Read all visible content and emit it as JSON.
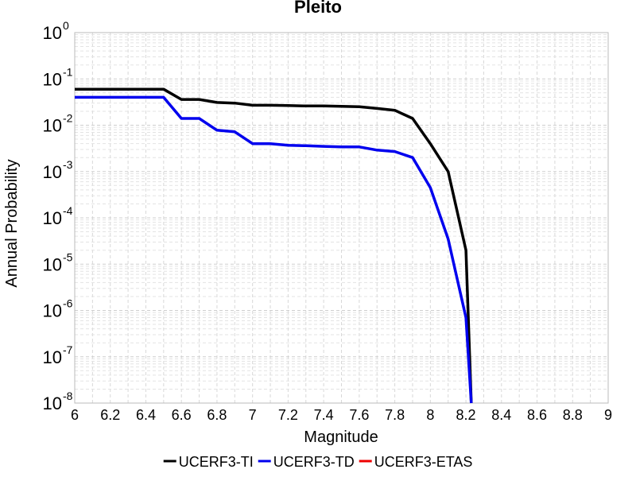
{
  "chart_data": {
    "type": "line",
    "title": "Pleito",
    "xlabel": "Magnitude",
    "ylabel": "Annual Probability",
    "xlim": [
      6,
      9
    ],
    "ylim": [
      1e-08,
      1
    ],
    "yscale": "log",
    "grid": true,
    "legend_position": "bottom",
    "xticks": [
      "6",
      "6.2",
      "6.4",
      "6.6",
      "6.8",
      "7",
      "7.2",
      "7.4",
      "7.6",
      "7.8",
      "8",
      "8.2",
      "8.4",
      "8.6",
      "8.8",
      "9"
    ],
    "yticks": [
      {
        "base": "10",
        "exp": "0"
      },
      {
        "base": "10",
        "exp": "-1"
      },
      {
        "base": "10",
        "exp": "-2"
      },
      {
        "base": "10",
        "exp": "-3"
      },
      {
        "base": "10",
        "exp": "-4"
      },
      {
        "base": "10",
        "exp": "-5"
      },
      {
        "base": "10",
        "exp": "-6"
      },
      {
        "base": "10",
        "exp": "-7"
      },
      {
        "base": "10",
        "exp": "-8"
      }
    ],
    "series": [
      {
        "name": "UCERF3-TI",
        "color": "#000000",
        "x": [
          6.0,
          6.5,
          6.6,
          6.7,
          6.8,
          6.9,
          7.0,
          7.1,
          7.2,
          7.3,
          7.4,
          7.5,
          7.6,
          7.7,
          7.8,
          7.9,
          8.0,
          8.1,
          8.2,
          8.23
        ],
        "y": [
          0.06,
          0.06,
          0.036,
          0.036,
          0.031,
          0.03,
          0.027,
          0.027,
          0.0265,
          0.026,
          0.026,
          0.0255,
          0.025,
          0.023,
          0.021,
          0.014,
          0.004,
          0.001,
          2e-05,
          1e-08
        ]
      },
      {
        "name": "UCERF3-TD",
        "color": "#0000ee",
        "x": [
          6.0,
          6.5,
          6.6,
          6.7,
          6.8,
          6.9,
          7.0,
          7.1,
          7.2,
          7.3,
          7.4,
          7.5,
          7.6,
          7.7,
          7.8,
          7.9,
          8.0,
          8.1,
          8.2,
          8.23
        ],
        "y": [
          0.04,
          0.04,
          0.014,
          0.014,
          0.0078,
          0.0072,
          0.004,
          0.004,
          0.0037,
          0.0036,
          0.0035,
          0.0034,
          0.0034,
          0.0029,
          0.0027,
          0.002,
          0.00045,
          3.5e-05,
          7e-07,
          1e-08
        ]
      },
      {
        "name": "UCERF3-ETAS",
        "color": "#ee0000",
        "x": [],
        "y": []
      }
    ]
  }
}
